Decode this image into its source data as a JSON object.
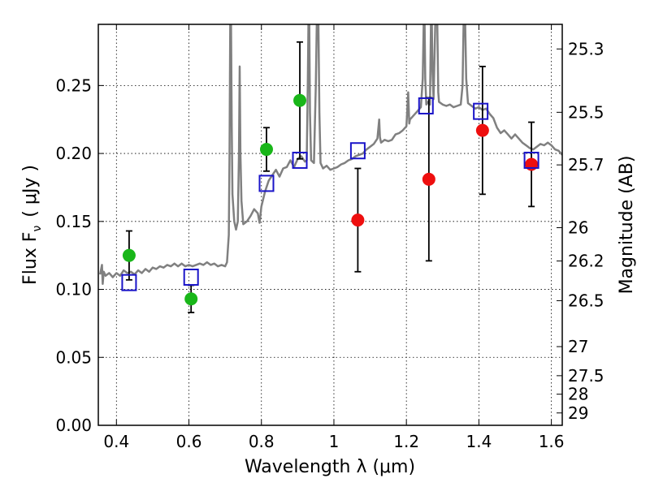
{
  "chart_data": {
    "type": "scatter",
    "xlabel": "Wavelength  λ (μm)",
    "ylabel": "Flux  F",
    "ylabel_sub": "ν",
    "ylabel_unit": "( μJy )",
    "y2label": "Magnitude (AB)",
    "xlim": [
      0.35,
      1.63
    ],
    "ylim": [
      0.0,
      0.295
    ],
    "x_ticks": [
      0.4,
      0.6,
      0.8,
      1.0,
      1.2,
      1.4,
      1.6
    ],
    "x_tick_labels": [
      "0.4",
      "0.6",
      "0.8",
      "1",
      "1.2",
      "1.4",
      "1.6"
    ],
    "y_ticks": [
      0.0,
      0.05,
      0.1,
      0.15,
      0.2,
      0.25
    ],
    "y_tick_labels": [
      "0.00",
      "0.05",
      "0.10",
      "0.15",
      "0.20",
      "0.25"
    ],
    "y2_ticks": [
      {
        "label": "25.3",
        "flux": 0.2769
      },
      {
        "label": "25.5",
        "flux": 0.2303
      },
      {
        "label": "25.7",
        "flux": 0.1916
      },
      {
        "label": "26",
        "flux": 0.1454
      },
      {
        "label": "26.2",
        "flux": 0.1209
      },
      {
        "label": "26.5",
        "flux": 0.0917
      },
      {
        "label": "27",
        "flux": 0.0579
      },
      {
        "label": "27.5",
        "flux": 0.0365
      },
      {
        "label": "28",
        "flux": 0.0229
      },
      {
        "label": "29",
        "flux": 0.0091
      }
    ],
    "grid": true,
    "colors": {
      "green": "#19b619",
      "red": "#ee0f0f",
      "blue": "#1a14c8",
      "model": "#808080",
      "errorbar": "#000000"
    },
    "series": [
      {
        "marker": "circle",
        "color": "green",
        "points": [
          {
            "x": 0.435,
            "y": 0.125,
            "err": 0.018
          },
          {
            "x": 0.606,
            "y": 0.093,
            "err": 0.01
          },
          {
            "x": 0.814,
            "y": 0.203,
            "err": 0.016
          },
          {
            "x": 0.906,
            "y": 0.239,
            "err": 0.043
          }
        ]
      },
      {
        "marker": "circle",
        "color": "red",
        "points": [
          {
            "x": 1.066,
            "y": 0.151,
            "err": 0.038
          },
          {
            "x": 1.262,
            "y": 0.181,
            "err": 0.06
          },
          {
            "x": 1.41,
            "y": 0.217,
            "err": 0.047
          },
          {
            "x": 1.545,
            "y": 0.192,
            "err": 0.031
          }
        ]
      },
      {
        "marker": "square",
        "color": "blue",
        "points": [
          {
            "x": 0.435,
            "y": 0.105
          },
          {
            "x": 0.606,
            "y": 0.109
          },
          {
            "x": 0.814,
            "y": 0.178
          },
          {
            "x": 0.906,
            "y": 0.195
          },
          {
            "x": 1.066,
            "y": 0.202
          },
          {
            "x": 1.254,
            "y": 0.235
          },
          {
            "x": 1.405,
            "y": 0.231
          },
          {
            "x": 1.545,
            "y": 0.195
          }
        ]
      }
    ],
    "model_curve": [
      [
        0.355,
        0.111
      ],
      [
        0.36,
        0.118
      ],
      [
        0.362,
        0.104
      ],
      [
        0.365,
        0.113
      ],
      [
        0.37,
        0.11
      ],
      [
        0.38,
        0.112
      ],
      [
        0.39,
        0.109
      ],
      [
        0.4,
        0.112
      ],
      [
        0.41,
        0.11
      ],
      [
        0.42,
        0.114
      ],
      [
        0.43,
        0.112
      ],
      [
        0.44,
        0.113
      ],
      [
        0.45,
        0.111
      ],
      [
        0.46,
        0.114
      ],
      [
        0.47,
        0.112
      ],
      [
        0.48,
        0.115
      ],
      [
        0.49,
        0.113
      ],
      [
        0.5,
        0.116
      ],
      [
        0.51,
        0.115
      ],
      [
        0.52,
        0.117
      ],
      [
        0.53,
        0.116
      ],
      [
        0.54,
        0.118
      ],
      [
        0.55,
        0.117
      ],
      [
        0.56,
        0.119
      ],
      [
        0.57,
        0.117
      ],
      [
        0.58,
        0.119
      ],
      [
        0.59,
        0.117
      ],
      [
        0.6,
        0.118
      ],
      [
        0.61,
        0.117
      ],
      [
        0.62,
        0.118
      ],
      [
        0.63,
        0.119
      ],
      [
        0.64,
        0.118
      ],
      [
        0.65,
        0.12
      ],
      [
        0.66,
        0.118
      ],
      [
        0.67,
        0.119
      ],
      [
        0.68,
        0.117
      ],
      [
        0.69,
        0.118
      ],
      [
        0.7,
        0.117
      ],
      [
        0.705,
        0.12
      ],
      [
        0.71,
        0.14
      ],
      [
        0.712,
        0.2
      ],
      [
        0.714,
        0.3
      ],
      [
        0.716,
        0.3
      ],
      [
        0.718,
        0.22
      ],
      [
        0.72,
        0.17
      ],
      [
        0.725,
        0.15
      ],
      [
        0.73,
        0.144
      ],
      [
        0.735,
        0.15
      ],
      [
        0.738,
        0.2
      ],
      [
        0.74,
        0.264
      ],
      [
        0.742,
        0.2
      ],
      [
        0.745,
        0.165
      ],
      [
        0.75,
        0.148
      ],
      [
        0.76,
        0.15
      ],
      [
        0.77,
        0.154
      ],
      [
        0.78,
        0.159
      ],
      [
        0.79,
        0.156
      ],
      [
        0.795,
        0.149
      ],
      [
        0.8,
        0.161
      ],
      [
        0.81,
        0.172
      ],
      [
        0.82,
        0.18
      ],
      [
        0.83,
        0.184
      ],
      [
        0.84,
        0.188
      ],
      [
        0.85,
        0.183
      ],
      [
        0.86,
        0.189
      ],
      [
        0.87,
        0.19
      ],
      [
        0.88,
        0.195
      ],
      [
        0.89,
        0.19
      ],
      [
        0.9,
        0.196
      ],
      [
        0.91,
        0.198
      ],
      [
        0.92,
        0.194
      ],
      [
        0.925,
        0.195
      ],
      [
        0.928,
        0.25
      ],
      [
        0.93,
        0.3
      ],
      [
        0.932,
        0.3
      ],
      [
        0.934,
        0.23
      ],
      [
        0.937,
        0.195
      ],
      [
        0.945,
        0.193
      ],
      [
        0.95,
        0.25
      ],
      [
        0.953,
        0.3
      ],
      [
        0.957,
        0.3
      ],
      [
        0.96,
        0.23
      ],
      [
        0.963,
        0.193
      ],
      [
        0.97,
        0.189
      ],
      [
        0.98,
        0.191
      ],
      [
        0.99,
        0.188
      ],
      [
        1.0,
        0.189
      ],
      [
        1.01,
        0.19
      ],
      [
        1.02,
        0.192
      ],
      [
        1.03,
        0.193
      ],
      [
        1.04,
        0.195
      ],
      [
        1.05,
        0.196
      ],
      [
        1.06,
        0.198
      ],
      [
        1.07,
        0.199
      ],
      [
        1.08,
        0.2
      ],
      [
        1.09,
        0.203
      ],
      [
        1.1,
        0.205
      ],
      [
        1.11,
        0.207
      ],
      [
        1.12,
        0.211
      ],
      [
        1.125,
        0.225
      ],
      [
        1.127,
        0.212
      ],
      [
        1.13,
        0.208
      ],
      [
        1.14,
        0.21
      ],
      [
        1.15,
        0.209
      ],
      [
        1.16,
        0.21
      ],
      [
        1.17,
        0.214
      ],
      [
        1.18,
        0.215
      ],
      [
        1.19,
        0.217
      ],
      [
        1.2,
        0.22
      ],
      [
        1.205,
        0.245
      ],
      [
        1.208,
        0.222
      ],
      [
        1.21,
        0.225
      ],
      [
        1.22,
        0.228
      ],
      [
        1.23,
        0.231
      ],
      [
        1.24,
        0.234
      ],
      [
        1.245,
        0.255
      ],
      [
        1.248,
        0.3
      ],
      [
        1.25,
        0.3
      ],
      [
        1.252,
        0.255
      ],
      [
        1.255,
        0.236
      ],
      [
        1.26,
        0.238
      ],
      [
        1.265,
        0.236
      ],
      [
        1.268,
        0.3
      ],
      [
        1.27,
        0.3
      ],
      [
        1.272,
        0.26
      ],
      [
        1.275,
        0.24
      ],
      [
        1.28,
        0.3
      ],
      [
        1.285,
        0.3
      ],
      [
        1.288,
        0.245
      ],
      [
        1.29,
        0.238
      ],
      [
        1.3,
        0.236
      ],
      [
        1.31,
        0.235
      ],
      [
        1.32,
        0.236
      ],
      [
        1.33,
        0.234
      ],
      [
        1.34,
        0.235
      ],
      [
        1.35,
        0.236
      ],
      [
        1.355,
        0.25
      ],
      [
        1.358,
        0.3
      ],
      [
        1.362,
        0.3
      ],
      [
        1.365,
        0.255
      ],
      [
        1.37,
        0.237
      ],
      [
        1.38,
        0.235
      ],
      [
        1.39,
        0.233
      ],
      [
        1.4,
        0.234
      ],
      [
        1.41,
        0.232
      ],
      [
        1.42,
        0.233
      ],
      [
        1.43,
        0.229
      ],
      [
        1.44,
        0.226
      ],
      [
        1.45,
        0.219
      ],
      [
        1.46,
        0.215
      ],
      [
        1.47,
        0.217
      ],
      [
        1.48,
        0.214
      ],
      [
        1.49,
        0.211
      ],
      [
        1.5,
        0.214
      ],
      [
        1.51,
        0.211
      ],
      [
        1.52,
        0.208
      ],
      [
        1.53,
        0.206
      ],
      [
        1.54,
        0.204
      ],
      [
        1.55,
        0.203
      ],
      [
        1.56,
        0.205
      ],
      [
        1.57,
        0.207
      ],
      [
        1.58,
        0.206
      ],
      [
        1.59,
        0.208
      ],
      [
        1.6,
        0.206
      ],
      [
        1.61,
        0.203
      ],
      [
        1.62,
        0.202
      ],
      [
        1.63,
        0.199
      ]
    ]
  }
}
